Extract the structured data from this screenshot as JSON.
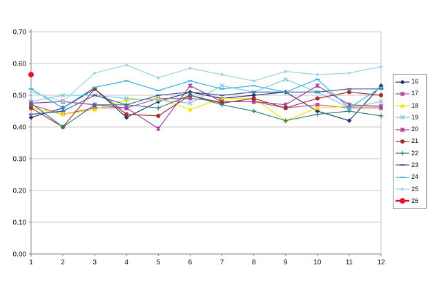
{
  "chart_data": {
    "type": "line",
    "title": "",
    "xlabel": "",
    "ylabel": "",
    "x_tick_labels": [
      "1",
      "2",
      "3",
      "4",
      "5",
      "6",
      "7",
      "8",
      "9",
      "10",
      "11",
      "12"
    ],
    "y_tick_labels": [
      "0.00",
      "0.10",
      "0.20",
      "0.30",
      "0.40",
      "0.50",
      "0.60",
      "0.70"
    ],
    "ylim": [
      0.0,
      0.7
    ],
    "ytick_step": 0.1,
    "grid": "horizontal",
    "legend_position": "right",
    "x": [
      1,
      2,
      3,
      4,
      5,
      6,
      7,
      8,
      9,
      10,
      11,
      12
    ],
    "series": [
      {
        "name": "16",
        "color": "#26316C",
        "marker": "diamond",
        "line_width": 1.2,
        "values": [
          0.43,
          0.46,
          0.52,
          0.43,
          0.48,
          0.51,
          0.49,
          0.5,
          0.51,
          0.45,
          0.42,
          0.53
        ]
      },
      {
        "name": "17",
        "color": "#B5519E",
        "marker": "square",
        "line_width": 1.2,
        "values": [
          0.47,
          0.44,
          0.46,
          0.46,
          0.49,
          0.49,
          0.48,
          0.48,
          0.46,
          0.47,
          0.46,
          0.46
        ]
      },
      {
        "name": "18",
        "color": "#F0E500",
        "marker": "triangle",
        "line_width": 1.2,
        "values": [
          0.46,
          0.44,
          0.455,
          0.485,
          0.49,
          0.455,
          0.49,
          0.49,
          0.42,
          0.46,
          0.465,
          0.465
        ]
      },
      {
        "name": "19",
        "color": "#82C8E0",
        "marker": "x",
        "line_width": 1.2,
        "values": [
          0.48,
          0.5,
          0.5,
          0.49,
          0.485,
          0.475,
          0.53,
          0.51,
          0.55,
          0.51,
          0.46,
          0.48
        ]
      },
      {
        "name": "20",
        "color": "#9C3E9C",
        "marker": "asterisk",
        "line_width": 1.2,
        "values": [
          0.475,
          0.48,
          0.47,
          0.46,
          0.395,
          0.53,
          0.48,
          0.48,
          0.47,
          0.53,
          0.47,
          0.465
        ]
      },
      {
        "name": "21",
        "color": "#A03033",
        "marker": "circle",
        "line_width": 1.2,
        "values": [
          0.46,
          0.4,
          0.52,
          0.44,
          0.435,
          0.5,
          0.475,
          0.49,
          0.46,
          0.49,
          0.51,
          0.5
        ]
      },
      {
        "name": "22",
        "color": "#2B837B",
        "marker": "plus",
        "line_width": 1.2,
        "values": [
          0.475,
          0.4,
          0.47,
          0.47,
          0.46,
          0.5,
          0.47,
          0.45,
          0.42,
          0.44,
          0.45,
          0.435
        ]
      },
      {
        "name": "23",
        "color": "#3D5FA1",
        "marker": "dash",
        "line_width": 1.2,
        "values": [
          0.44,
          0.45,
          0.5,
          0.47,
          0.5,
          0.51,
          0.5,
          0.51,
          0.51,
          0.51,
          0.52,
          0.52
        ]
      },
      {
        "name": "24",
        "color": "#33B3DD",
        "marker": "dash",
        "line_width": 1.2,
        "values": [
          0.52,
          0.46,
          0.525,
          0.545,
          0.515,
          0.545,
          0.52,
          0.53,
          0.51,
          0.55,
          0.46,
          0.525
        ]
      },
      {
        "name": "25",
        "color": "#9AD4E6",
        "marker": "diamond-small",
        "line_width": 1.2,
        "values": [
          0.51,
          0.48,
          0.57,
          0.595,
          0.555,
          0.585,
          0.565,
          0.545,
          0.575,
          0.565,
          0.57,
          0.59
        ]
      },
      {
        "name": "26",
        "color": "#E81123",
        "marker": "circle-big",
        "line_width": 2.4,
        "values": [
          0.565,
          null,
          null,
          null,
          null,
          null,
          null,
          null,
          null,
          null,
          null,
          null
        ]
      }
    ],
    "colors": {
      "gridline": "#C6C6C6",
      "axis": "#808080",
      "plot_border": "#C6C6C6",
      "background": "#FFFFFF",
      "tick_label": "#000000"
    }
  },
  "legend": {
    "entries": [
      "16",
      "17",
      "18",
      "19",
      "20",
      "21",
      "22",
      "23",
      "24",
      "25",
      "26"
    ]
  }
}
